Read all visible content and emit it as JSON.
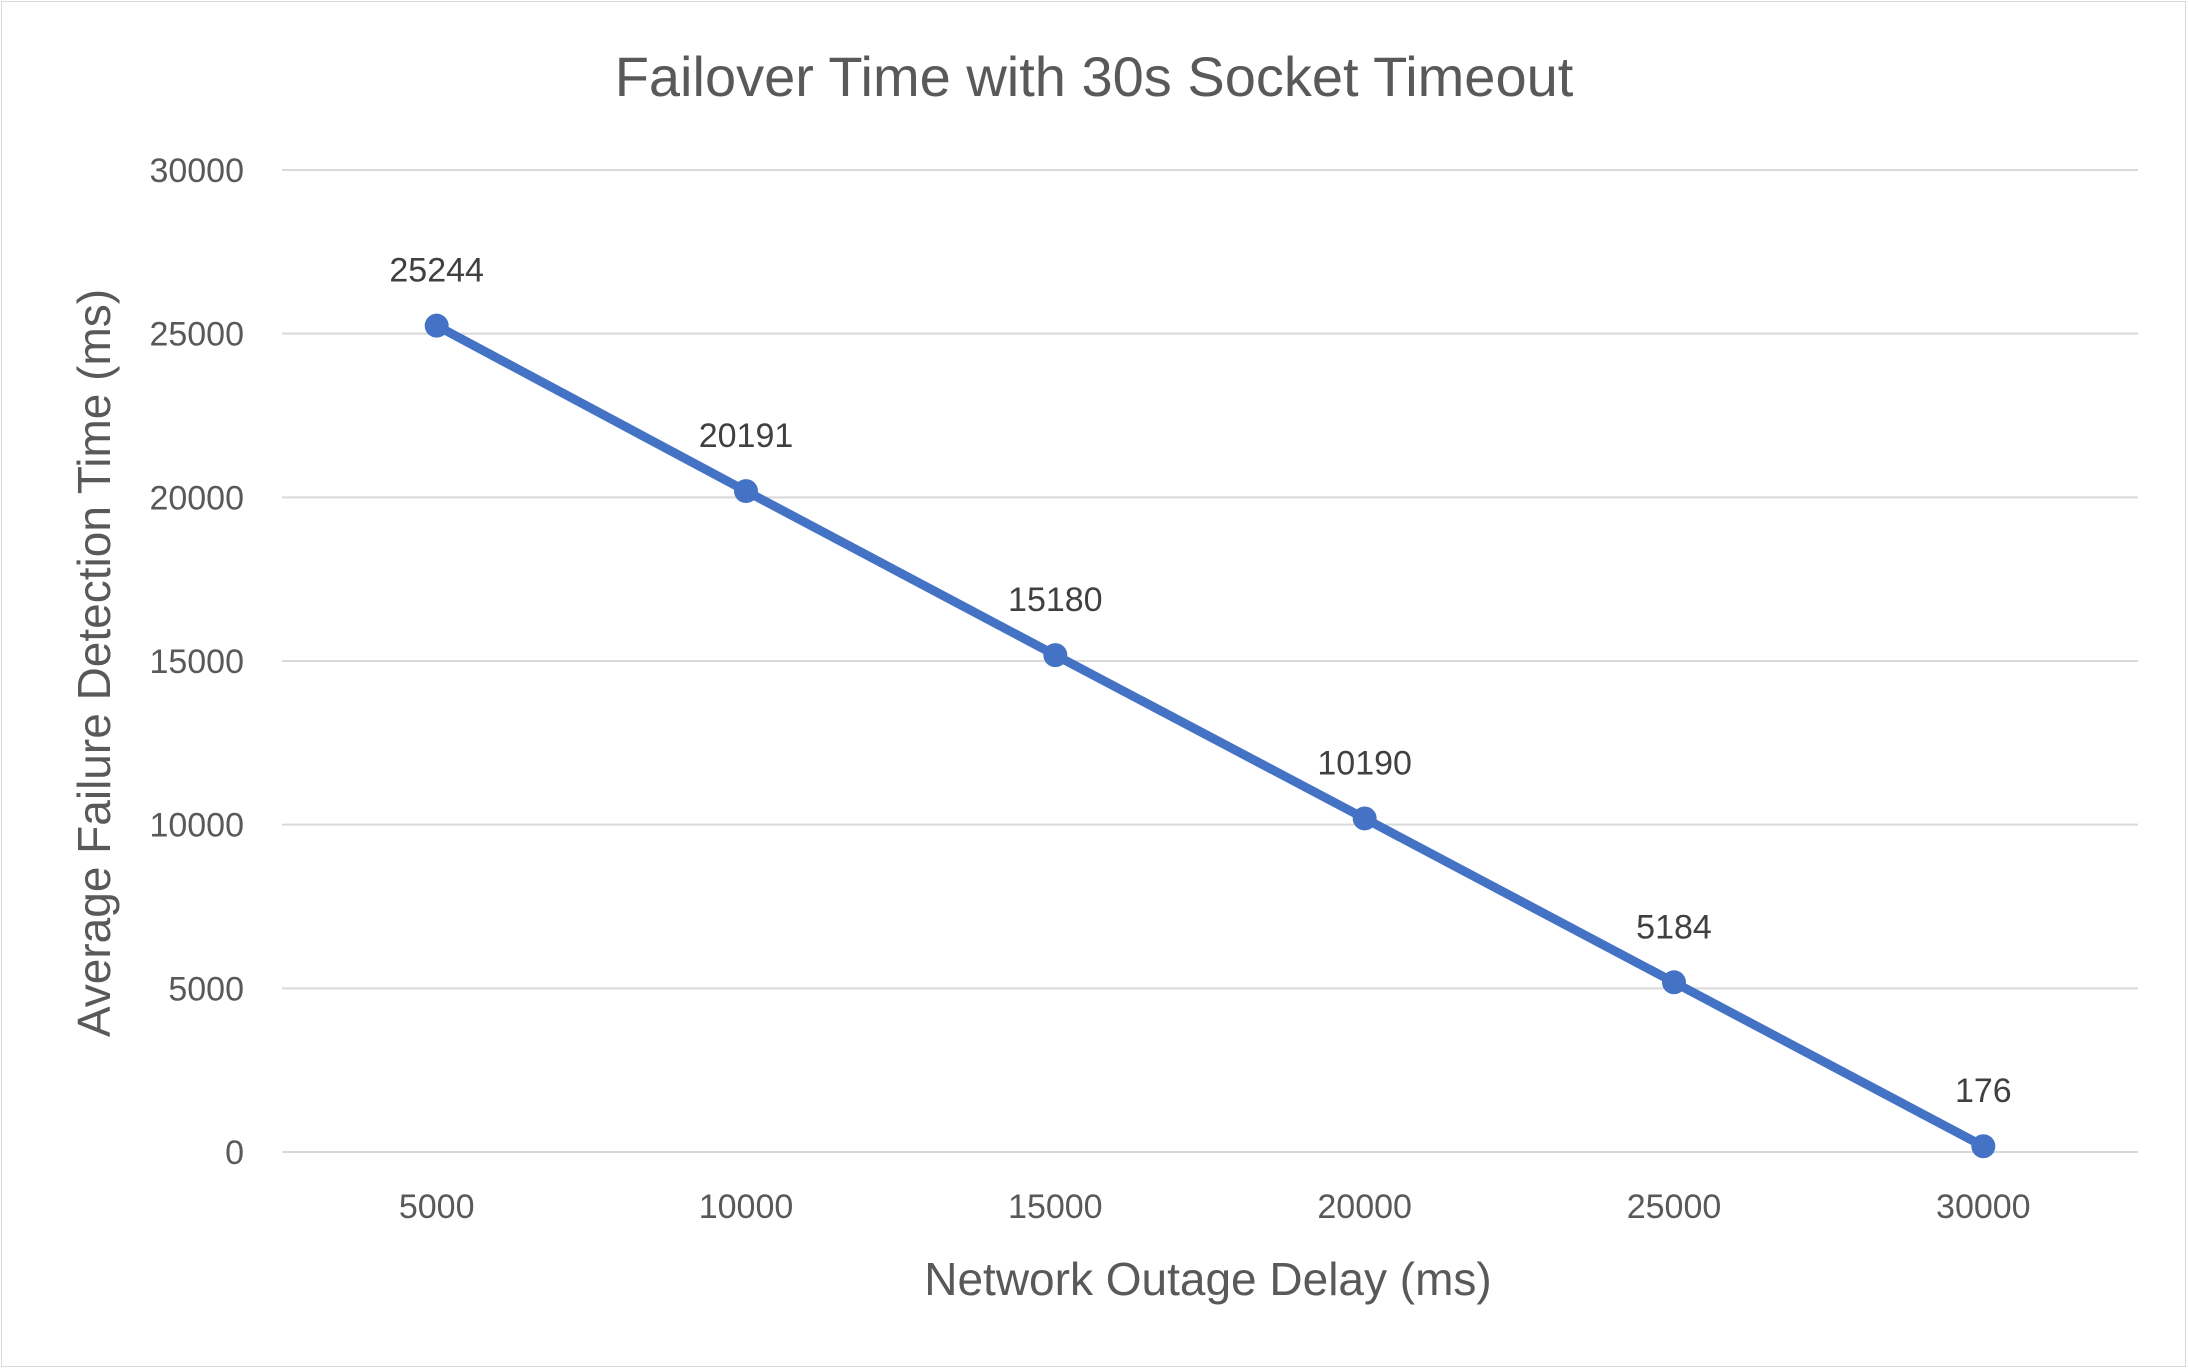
{
  "chart_data": {
    "type": "line",
    "title": "Failover Time with 30s Socket Timeout",
    "xlabel": "Network Outage Delay (ms)",
    "ylabel": "Average Failure Detection Time (ms)",
    "categories": [
      "5000",
      "10000",
      "15000",
      "20000",
      "25000",
      "30000"
    ],
    "series": [
      {
        "values": [
          25244,
          20191,
          15180,
          10190,
          5184,
          176
        ],
        "color": "#4472c4"
      }
    ],
    "data_labels": [
      "25244",
      "20191",
      "15180",
      "10190",
      "5184",
      "176"
    ],
    "yticks": [
      "0",
      "5000",
      "10000",
      "15000",
      "20000",
      "25000",
      "30000"
    ],
    "ylim": [
      0,
      30000
    ],
    "grid": true,
    "legend": "none"
  }
}
